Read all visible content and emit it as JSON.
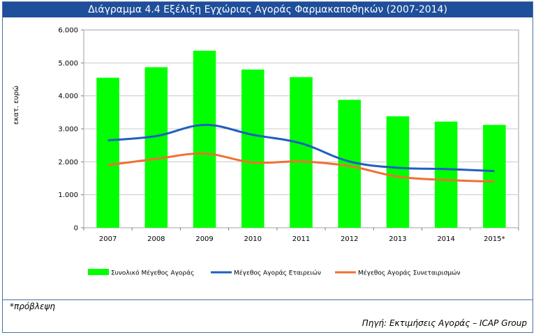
{
  "title": "Διάγραμμα 4.4 Εξέλιξη Εγχώριας Αγοράς Φαρμακαποθηκών (2007-2014)",
  "note": "*πρόβλεψη",
  "source": "Πηγή: Εκτιμήσεις Αγοράς –  ICAP Group",
  "colors": {
    "bars": "#00ff00",
    "line1": "#1f5fbf",
    "line2": "#f07030",
    "title_bg": "#1f4e9a"
  },
  "chart_data": {
    "type": "bar",
    "categories": [
      "2007",
      "2008",
      "2009",
      "2010",
      "2011",
      "2012",
      "2013",
      "2014",
      "2015*"
    ],
    "ylabel": "εκατ. ευρώ",
    "xlabel": "",
    "ylim": [
      0,
      6000
    ],
    "yticks": [
      "0",
      "1.000",
      "2.000",
      "3.000",
      "4.000",
      "5.000",
      "6.000"
    ],
    "grid": true,
    "legend_position": "bottom",
    "series": [
      {
        "name": "Συνολικό Μέγεθος Αγοράς",
        "type": "bar",
        "values": [
          4550,
          4870,
          5370,
          4800,
          4570,
          3880,
          3380,
          3220,
          3120
        ]
      },
      {
        "name": "Μέγεθος Αγοράς Εταιρειών",
        "type": "line",
        "values": [
          2650,
          2780,
          3120,
          2820,
          2560,
          2010,
          1820,
          1780,
          1720
        ]
      },
      {
        "name": "Μέγεθος Αγοράς Συνεταιρισμών",
        "type": "line",
        "values": [
          1900,
          2090,
          2250,
          1980,
          2010,
          1870,
          1550,
          1450,
          1400
        ]
      }
    ]
  }
}
